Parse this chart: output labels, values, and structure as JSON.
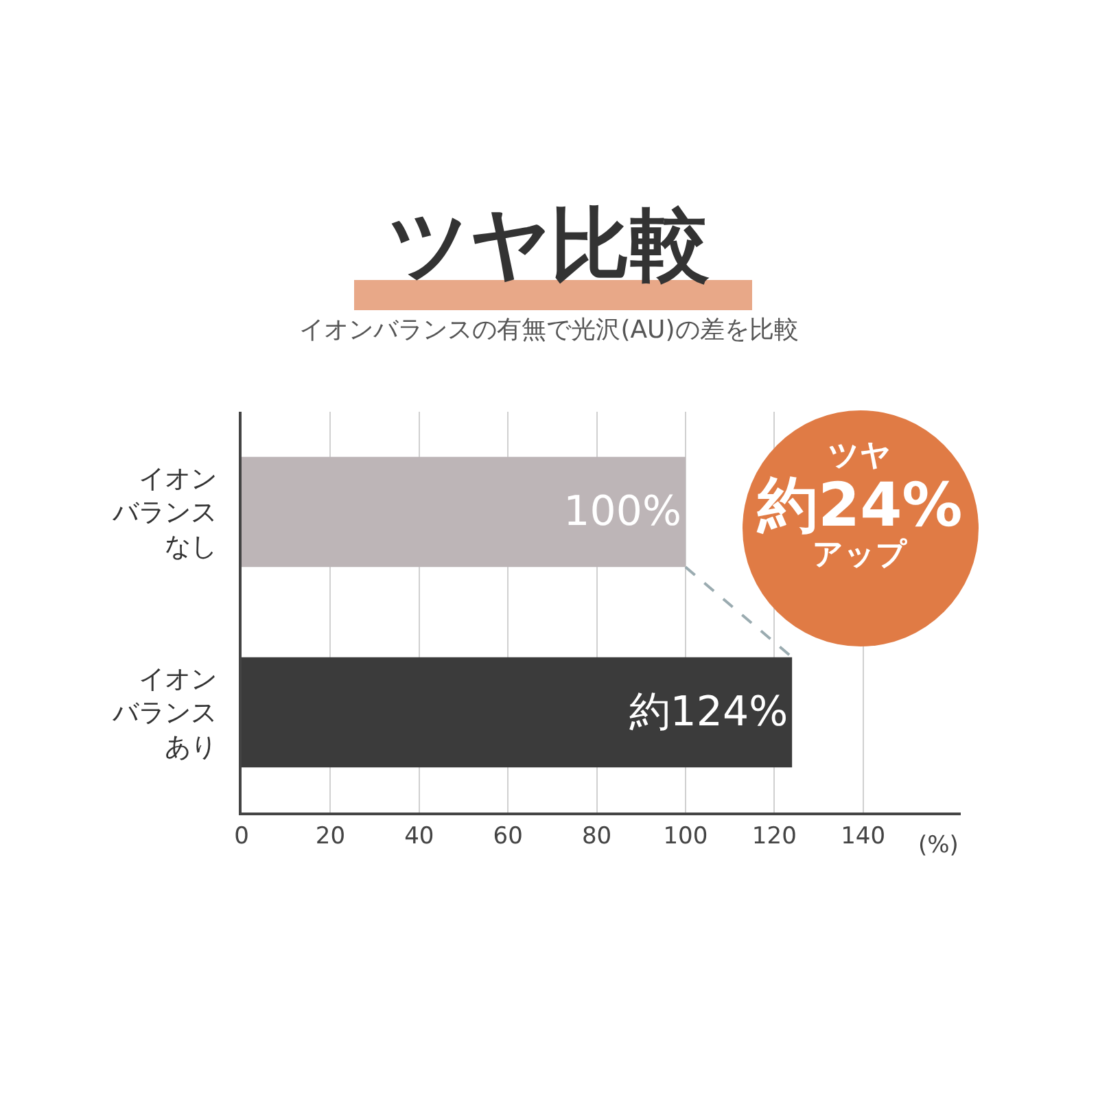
{
  "chart_data": {
    "type": "bar",
    "orientation": "horizontal",
    "title": "ツヤ比較",
    "subtitle": "イオンバランスの有無で光沢(AU)の差を比較",
    "xlabel": "(%)",
    "categories": [
      "イオンバランスなし",
      "イオンバランスあり"
    ],
    "values": [
      100,
      124
    ],
    "colors": [
      "#bdb5b7",
      "#3b3b3b"
    ],
    "value_labels": [
      "100%",
      "約124%"
    ],
    "xlim": [
      0,
      162
    ],
    "xticks": [
      0,
      20,
      40,
      60,
      80,
      100,
      120,
      140
    ],
    "grid": "x",
    "annotations": [
      "ツヤ",
      {
        "text": "約24%",
        "x": 124,
        "y": "イオンバランスあり"
      },
      "アップ"
    ]
  }
}
